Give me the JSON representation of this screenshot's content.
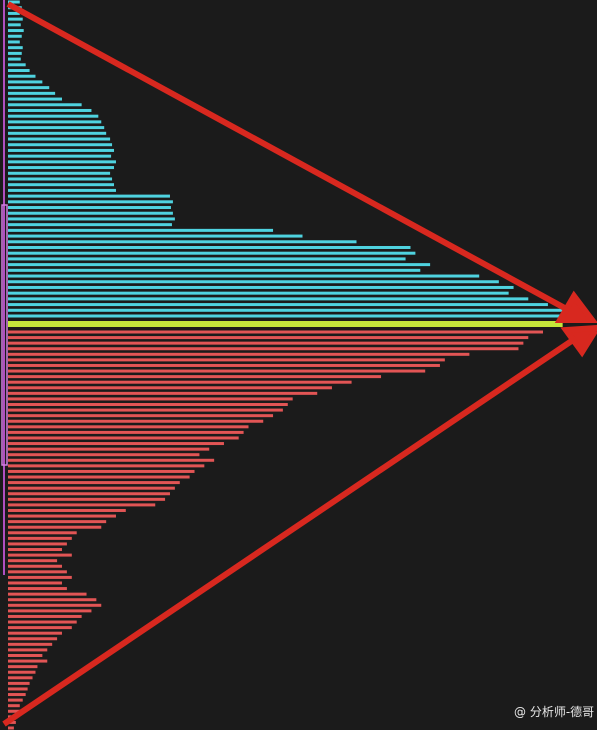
{
  "chart_data": {
    "type": "bar",
    "orientation": "horizontal",
    "xlim": [
      0,
      600
    ],
    "series": [
      {
        "color": "#4fd3e0",
        "values": [
          12,
          14,
          12,
          15,
          13,
          16,
          14,
          12,
          15,
          14,
          13,
          18,
          22,
          28,
          35,
          42,
          48,
          55,
          75,
          85,
          92,
          95,
          98,
          100,
          104,
          106,
          108,
          105,
          110,
          108,
          104,
          106,
          108,
          110,
          165,
          168,
          166,
          168,
          170,
          167,
          270,
          300,
          355,
          410,
          415,
          405,
          430,
          420,
          480,
          500,
          515,
          510,
          530,
          550,
          565,
          575
        ]
      },
      {
        "color": "#c4e63a",
        "values": [
          565
        ]
      },
      {
        "color": "#e25555",
        "values": [
          545,
          530,
          525,
          520,
          470,
          445,
          440,
          425,
          380,
          350,
          330,
          315,
          290,
          285,
          280,
          270,
          260,
          245,
          240,
          235,
          220,
          205,
          195,
          210,
          200,
          190,
          185,
          175,
          170,
          165,
          160,
          150,
          120,
          110,
          100,
          95,
          70,
          65,
          60,
          55,
          65,
          50,
          55,
          60,
          65,
          55,
          60,
          80,
          90,
          95,
          85,
          75,
          70,
          65,
          55,
          50,
          45,
          40,
          35,
          40,
          30,
          28,
          25,
          22,
          20,
          18,
          15,
          12,
          14,
          10,
          8,
          6
        ]
      }
    ]
  },
  "watermark": "@ 分析师-德哥"
}
